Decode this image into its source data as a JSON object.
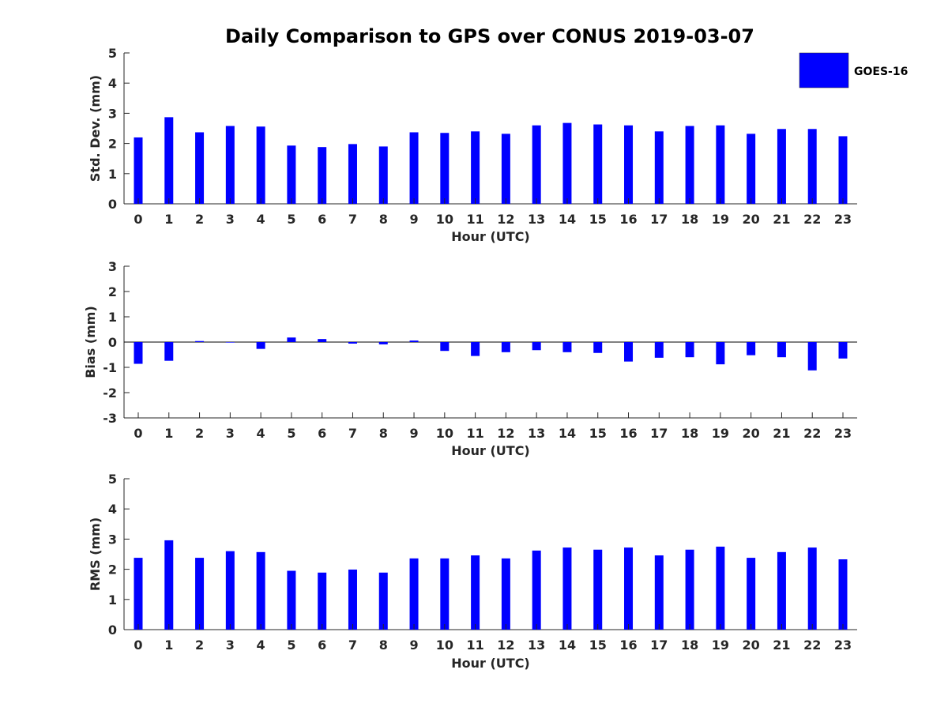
{
  "title": "Daily Comparison to GPS over CONUS 2019-03-07",
  "legend": {
    "label": "GOES-16",
    "color": "#0000ff"
  },
  "colors": {
    "bar": "#0000ff",
    "axis": "#262626",
    "zero_line": "#000000"
  },
  "chart_data": [
    {
      "type": "bar",
      "id": "std",
      "ylabel": "Std. Dev. (mm)",
      "xlabel": "Hour (UTC)",
      "ylim": [
        0,
        5
      ],
      "yticks": [
        0,
        1,
        2,
        3,
        4,
        5
      ],
      "categories": [
        "0",
        "1",
        "2",
        "3",
        "4",
        "5",
        "6",
        "7",
        "8",
        "9",
        "10",
        "11",
        "12",
        "13",
        "14",
        "15",
        "16",
        "17",
        "18",
        "19",
        "20",
        "21",
        "22",
        "23"
      ],
      "series": [
        {
          "name": "GOES-16",
          "values": [
            2.2,
            2.87,
            2.37,
            2.58,
            2.56,
            1.93,
            1.88,
            1.98,
            1.9,
            2.37,
            2.35,
            2.4,
            2.32,
            2.6,
            2.68,
            2.63,
            2.6,
            2.4,
            2.58,
            2.6,
            2.32,
            2.48,
            2.48,
            2.24
          ]
        }
      ]
    },
    {
      "type": "bar",
      "id": "bias",
      "ylabel": "Bias (mm)",
      "xlabel": "Hour (UTC)",
      "ylim": [
        -3,
        3
      ],
      "yticks": [
        -3,
        -2,
        -1,
        0,
        1,
        2,
        3
      ],
      "categories": [
        "0",
        "1",
        "2",
        "3",
        "4",
        "5",
        "6",
        "7",
        "8",
        "9",
        "10",
        "11",
        "12",
        "13",
        "14",
        "15",
        "16",
        "17",
        "18",
        "19",
        "20",
        "21",
        "22",
        "23"
      ],
      "series": [
        {
          "name": "GOES-16",
          "values": [
            -0.86,
            -0.74,
            0.04,
            -0.02,
            -0.27,
            0.18,
            0.12,
            -0.06,
            -0.09,
            0.06,
            -0.35,
            -0.55,
            -0.4,
            -0.32,
            -0.4,
            -0.43,
            -0.77,
            -0.62,
            -0.6,
            -0.88,
            -0.52,
            -0.6,
            -1.12,
            -0.65
          ]
        }
      ]
    },
    {
      "type": "bar",
      "id": "rms",
      "ylabel": "RMS (mm)",
      "xlabel": "Hour (UTC)",
      "ylim": [
        0,
        5
      ],
      "yticks": [
        0,
        1,
        2,
        3,
        4,
        5
      ],
      "categories": [
        "0",
        "1",
        "2",
        "3",
        "4",
        "5",
        "6",
        "7",
        "8",
        "9",
        "10",
        "11",
        "12",
        "13",
        "14",
        "15",
        "16",
        "17",
        "18",
        "19",
        "20",
        "21",
        "22",
        "23"
      ],
      "series": [
        {
          "name": "GOES-16",
          "values": [
            2.38,
            2.96,
            2.38,
            2.6,
            2.57,
            1.95,
            1.89,
            1.99,
            1.89,
            2.36,
            2.36,
            2.46,
            2.36,
            2.62,
            2.72,
            2.65,
            2.72,
            2.46,
            2.65,
            2.75,
            2.38,
            2.57,
            2.72,
            2.33
          ]
        }
      ]
    }
  ]
}
